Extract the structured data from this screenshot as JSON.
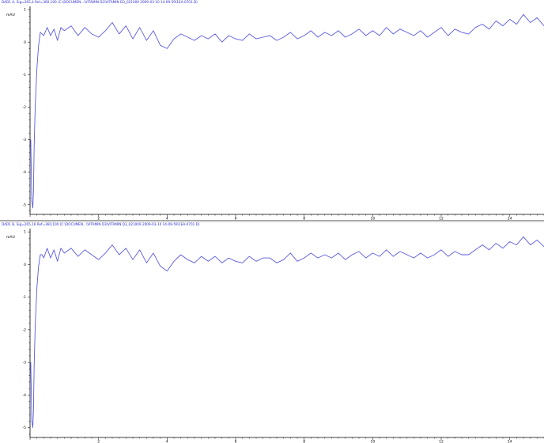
{
  "chart_data": [
    {
      "type": "line",
      "title": "DAD1 A, Sig=265,4 Ref=360,100 (C:\\DOCUMEN...\\VITAMIN D3\\VITAMIN D3_021009 2009-03-10 14-09-59\\1EA-0701.D)",
      "ylabel": "mAU",
      "xlabel": "",
      "xlim": [
        0,
        15
      ],
      "ylim": [
        -5.3,
        1.1
      ],
      "xticks": [
        2,
        4,
        6,
        8,
        10,
        12,
        14
      ],
      "yticks": [
        1,
        0,
        -1,
        -2,
        -3,
        -4,
        -5
      ],
      "grid": false,
      "series": [
        {
          "color": "#5a5ae0",
          "x": [
            0.02,
            0.05,
            0.08,
            0.1,
            0.12,
            0.15,
            0.2,
            0.25,
            0.3,
            0.35,
            0.4,
            0.5,
            0.6,
            0.7,
            0.8,
            0.9,
            1.0,
            1.2,
            1.4,
            1.6,
            1.8,
            2.0,
            2.2,
            2.4,
            2.6,
            2.8,
            3.0,
            3.2,
            3.4,
            3.6,
            3.8,
            4.0,
            4.2,
            4.4,
            4.6,
            4.8,
            5.0,
            5.2,
            5.4,
            5.6,
            5.8,
            6.0,
            6.2,
            6.4,
            6.6,
            6.8,
            7.0,
            7.2,
            7.4,
            7.6,
            7.8,
            8.0,
            8.2,
            8.4,
            8.6,
            8.8,
            9.0,
            9.2,
            9.4,
            9.6,
            9.8,
            10.0,
            10.2,
            10.4,
            10.6,
            10.8,
            11.0,
            11.2,
            11.4,
            11.6,
            11.8,
            12.0,
            12.2,
            12.4,
            12.6,
            12.8,
            13.0,
            13.2,
            13.4,
            13.6,
            13.8,
            14.0,
            14.2,
            14.4,
            14.6,
            14.8,
            15.0
          ],
          "y": [
            -3.0,
            -4.9,
            -5.1,
            -4.6,
            -3.2,
            -2.0,
            -0.8,
            -0.1,
            0.3,
            0.25,
            0.2,
            0.45,
            0.2,
            0.4,
            0.05,
            0.45,
            0.35,
            0.5,
            0.2,
            0.45,
            0.25,
            0.15,
            0.35,
            0.6,
            0.25,
            0.5,
            0.1,
            0.45,
            0.05,
            0.35,
            -0.1,
            -0.2,
            0.1,
            0.25,
            0.15,
            0.05,
            0.2,
            0.1,
            0.25,
            0.0,
            0.2,
            0.1,
            0.05,
            0.25,
            0.1,
            0.15,
            0.2,
            0.05,
            0.15,
            0.3,
            0.1,
            0.2,
            0.35,
            0.15,
            0.3,
            0.2,
            0.35,
            0.15,
            0.25,
            0.4,
            0.2,
            0.35,
            0.2,
            0.45,
            0.25,
            0.4,
            0.3,
            0.2,
            0.35,
            0.15,
            0.3,
            0.45,
            0.2,
            0.4,
            0.3,
            0.25,
            0.45,
            0.55,
            0.4,
            0.65,
            0.5,
            0.7,
            0.55,
            0.85,
            0.6,
            0.75,
            0.5
          ]
        }
      ]
    },
    {
      "type": "line",
      "title": "DAD1 B, Sig=265,16 Ref=360,100 (C:\\DOCUMEN...\\VITAMIN D3\\VITAMIN D3_021009 2009-03-10 14-09-59\\1EA-0701.D)",
      "ylabel": "mAU",
      "xlabel": "",
      "xlim": [
        0,
        15
      ],
      "ylim": [
        -5.3,
        1.1
      ],
      "xticks": [
        2,
        4,
        6,
        8,
        10,
        12,
        14
      ],
      "yticks": [
        1,
        0,
        -1,
        -2,
        -3,
        -4,
        -5
      ],
      "grid": false,
      "series": [
        {
          "color": "#5a5ae0",
          "x": [
            0.02,
            0.05,
            0.08,
            0.1,
            0.12,
            0.15,
            0.2,
            0.25,
            0.3,
            0.35,
            0.4,
            0.5,
            0.6,
            0.7,
            0.8,
            0.9,
            1.0,
            1.2,
            1.4,
            1.6,
            1.8,
            2.0,
            2.2,
            2.4,
            2.6,
            2.8,
            3.0,
            3.2,
            3.4,
            3.6,
            3.8,
            4.0,
            4.2,
            4.4,
            4.6,
            4.8,
            5.0,
            5.2,
            5.4,
            5.6,
            5.8,
            6.0,
            6.2,
            6.4,
            6.6,
            6.8,
            7.0,
            7.2,
            7.4,
            7.6,
            7.8,
            8.0,
            8.2,
            8.4,
            8.6,
            8.8,
            9.0,
            9.2,
            9.4,
            9.6,
            9.8,
            10.0,
            10.2,
            10.4,
            10.6,
            10.8,
            11.0,
            11.2,
            11.4,
            11.6,
            11.8,
            12.0,
            12.2,
            12.4,
            12.6,
            12.8,
            13.0,
            13.2,
            13.4,
            13.6,
            13.8,
            14.0,
            14.2,
            14.4,
            14.6,
            14.8,
            15.0
          ],
          "y": [
            -3.0,
            -4.8,
            -5.0,
            -4.5,
            -3.1,
            -1.9,
            -0.7,
            -0.05,
            0.3,
            0.3,
            0.2,
            0.5,
            0.2,
            0.45,
            0.1,
            0.5,
            0.35,
            0.5,
            0.25,
            0.45,
            0.3,
            0.15,
            0.35,
            0.6,
            0.3,
            0.5,
            0.15,
            0.45,
            0.05,
            0.35,
            -0.05,
            -0.2,
            0.1,
            0.3,
            0.15,
            0.05,
            0.25,
            0.1,
            0.25,
            0.05,
            0.2,
            0.1,
            0.05,
            0.25,
            0.1,
            0.2,
            0.2,
            0.05,
            0.15,
            0.35,
            0.1,
            0.2,
            0.35,
            0.2,
            0.3,
            0.2,
            0.35,
            0.15,
            0.3,
            0.4,
            0.2,
            0.35,
            0.25,
            0.45,
            0.25,
            0.4,
            0.3,
            0.2,
            0.35,
            0.2,
            0.3,
            0.45,
            0.25,
            0.4,
            0.3,
            0.3,
            0.45,
            0.6,
            0.45,
            0.65,
            0.5,
            0.7,
            0.6,
            0.85,
            0.6,
            0.75,
            0.55
          ]
        }
      ]
    }
  ]
}
